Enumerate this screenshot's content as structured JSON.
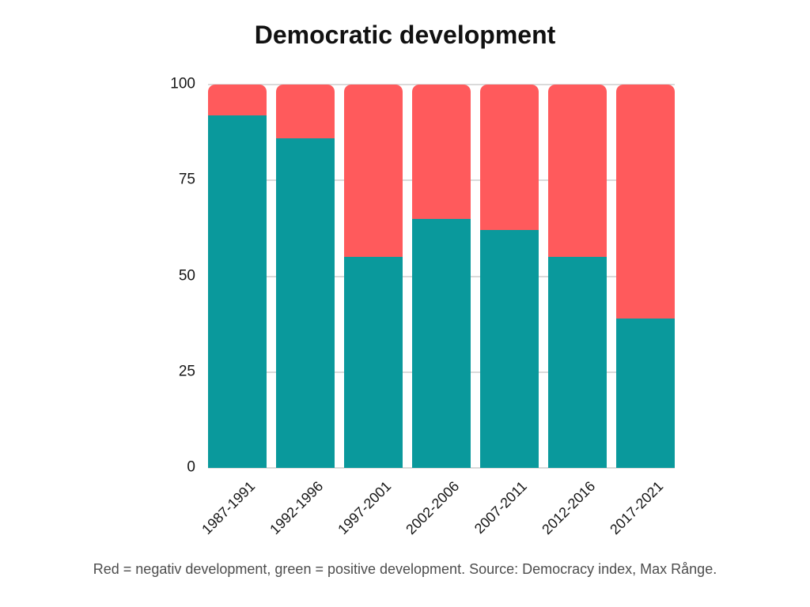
{
  "title": "Democratic development",
  "caption": "Red = negativ development, green = positive development. Source: Democracy index, Max Rånge.",
  "colors": {
    "positive": "#0a999c",
    "negative": "#ff5a5c",
    "gridline": "#dadada",
    "axis_text": "#161616",
    "caption_text": "#4d4d4d",
    "title_text": "#111111"
  },
  "chart_data": {
    "type": "bar",
    "stacked": true,
    "title": "Democratic development",
    "xlabel": "",
    "ylabel": "",
    "categories": [
      "1987-1991",
      "1992-1996",
      "1997-2001",
      "2002-2006",
      "2007-2011",
      "2012-2016",
      "2017-2021"
    ],
    "series": [
      {
        "name": "positive development",
        "color": "#0a999c",
        "values": [
          92,
          86,
          55,
          65,
          62,
          55,
          39
        ]
      },
      {
        "name": "negativ development",
        "color": "#ff5a5c",
        "values": [
          8,
          14,
          45,
          35,
          38,
          45,
          61
        ]
      }
    ],
    "ylim": [
      0,
      100
    ],
    "yticks": [
      0,
      25,
      50,
      75,
      100
    ],
    "grid": "horizontal",
    "legend": "none",
    "bar_corner_radius": "rounded-top"
  }
}
